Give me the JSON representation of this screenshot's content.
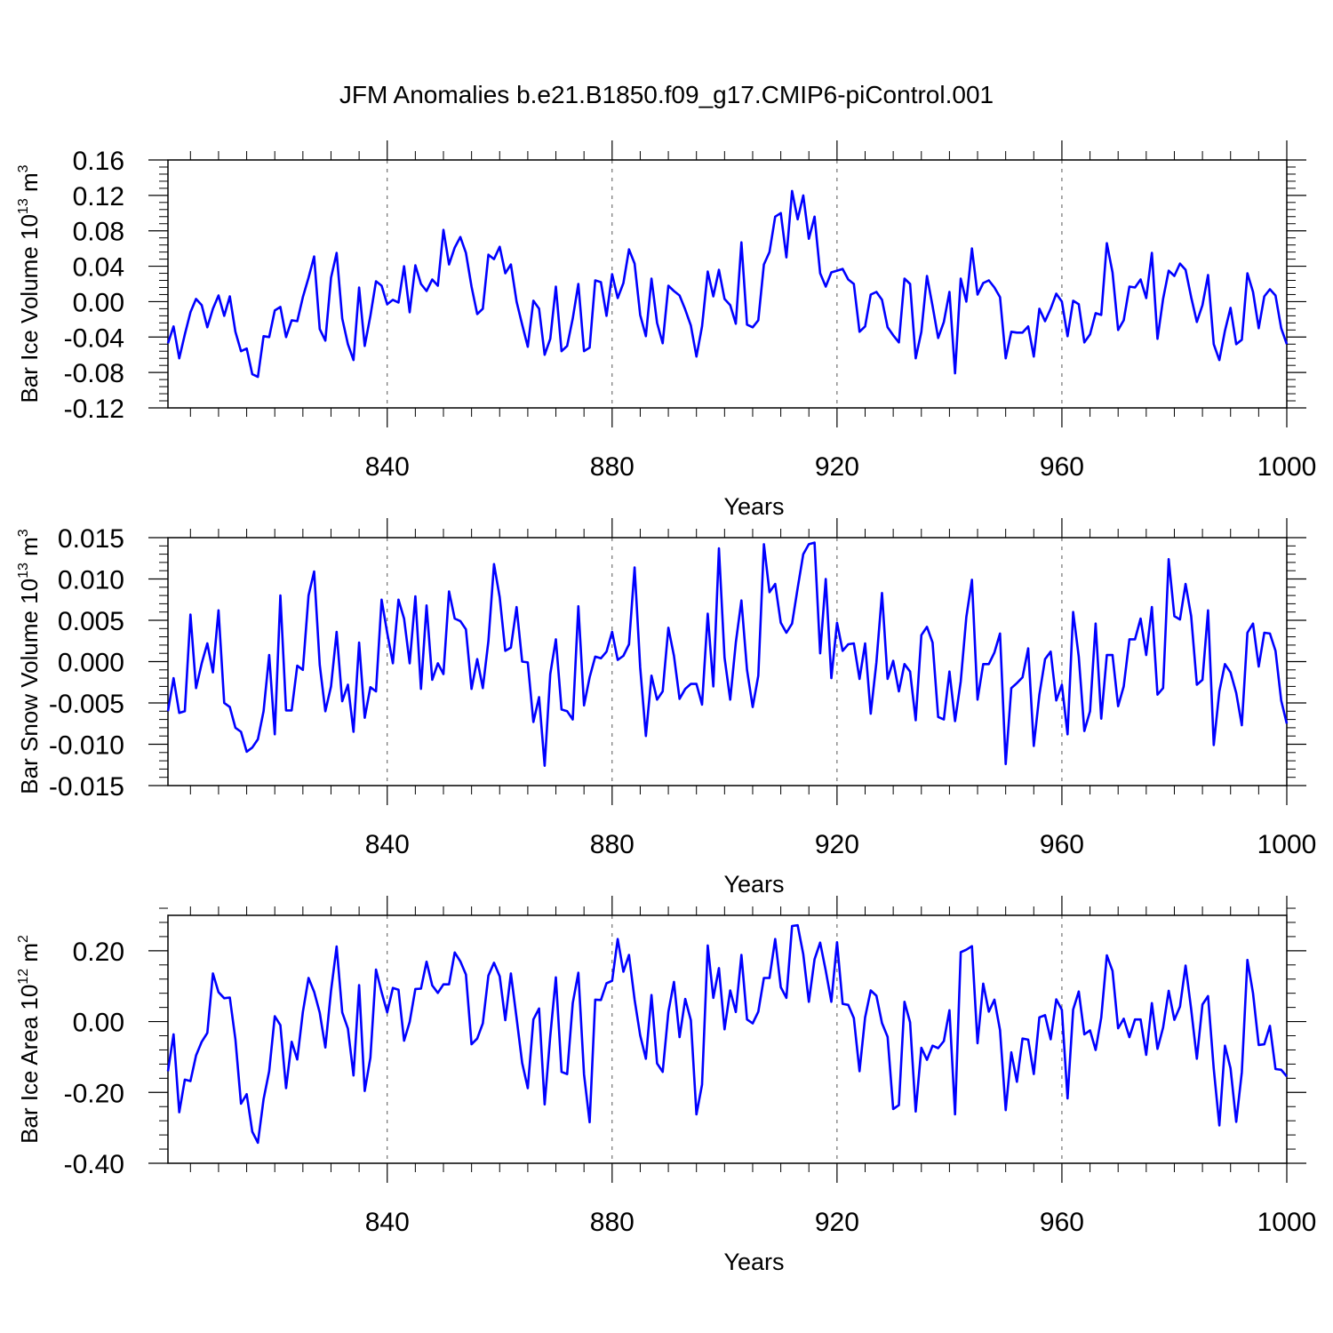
{
  "chart_data": {
    "title": "JFM Anomalies b.e21.B1850.f09_g17.CMIP6-piControl.001",
    "panels": [
      {
        "type": "line",
        "ylabel_prefix": "Bar Ice Volume 10",
        "ylabel_exp": "13",
        "ylabel_unit": " m",
        "ylabel_unit_exp": "3",
        "xlabel": "Years",
        "xlim": [
          801,
          1000
        ],
        "ylim": [
          -0.12,
          0.16
        ],
        "xticks": [
          840,
          880,
          920,
          960,
          1000
        ],
        "xtick_labels": [
          "840",
          "880",
          "920",
          "960",
          "1000"
        ],
        "yticks": [
          -0.12,
          -0.08,
          -0.04,
          0.0,
          0.04,
          0.08,
          0.12,
          0.16
        ],
        "ytick_labels": [
          "-0.12",
          "-0.08",
          "-0.04",
          "0.00",
          "0.04",
          "0.08",
          "0.12",
          "0.16"
        ],
        "color": "#0000ff",
        "series": [
          {
            "name": "Bar Ice Volume",
            "x_start": 801,
            "x_step": 1,
            "values": [
              -0.047,
              -0.028,
              -0.064,
              -0.037,
              -0.012,
              0.003,
              -0.004,
              -0.029,
              -0.008,
              0.007,
              -0.016,
              0.006,
              -0.034,
              -0.056,
              -0.053,
              -0.082,
              -0.085,
              -0.039,
              -0.04,
              -0.01,
              -0.006,
              -0.04,
              -0.021,
              -0.022,
              0.005,
              0.027,
              0.051,
              -0.031,
              -0.044,
              0.027,
              0.055,
              -0.019,
              -0.048,
              -0.066,
              0.016,
              -0.05,
              -0.016,
              0.023,
              0.018,
              -0.003,
              0.002,
              -0.001,
              0.04,
              -0.012,
              0.041,
              0.02,
              0.012,
              0.025,
              0.018,
              0.081,
              0.042,
              0.061,
              0.073,
              0.055,
              0.017,
              -0.014,
              -0.008,
              0.053,
              0.048,
              0.062,
              0.032,
              0.042,
              0.0,
              -0.026,
              -0.051,
              0.001,
              -0.008,
              -0.06,
              -0.042,
              0.017,
              -0.056,
              -0.05,
              -0.019,
              0.02,
              -0.056,
              -0.052,
              0.024,
              0.022,
              -0.016,
              0.031,
              0.004,
              0.021,
              0.059,
              0.043,
              -0.015,
              -0.039,
              0.026,
              -0.024,
              -0.047,
              0.018,
              0.012,
              0.007,
              -0.009,
              -0.027,
              -0.062,
              -0.028,
              0.034,
              0.006,
              0.036,
              0.003,
              -0.004,
              -0.025,
              0.067,
              -0.026,
              -0.029,
              -0.021,
              0.042,
              0.056,
              0.096,
              0.1,
              0.05,
              0.125,
              0.093,
              0.12,
              0.071,
              0.096,
              0.032,
              0.017,
              0.033,
              0.035,
              0.037,
              0.025,
              0.02,
              -0.034,
              -0.028,
              0.008,
              0.011,
              0.002,
              -0.029,
              -0.038,
              -0.046,
              0.026,
              0.02,
              -0.064,
              -0.034,
              0.029,
              -0.005,
              -0.041,
              -0.023,
              0.011,
              -0.081,
              0.026,
              0.0,
              0.06,
              0.008,
              0.021,
              0.024,
              0.016,
              0.005,
              -0.064,
              -0.034,
              -0.035,
              -0.035,
              -0.028,
              -0.062,
              -0.008,
              -0.022,
              -0.008,
              0.009,
              0.0,
              -0.039,
              0.001,
              -0.003,
              -0.046,
              -0.037,
              -0.013,
              -0.015,
              0.066,
              0.033,
              -0.032,
              -0.021,
              0.017,
              0.016,
              0.025,
              0.004,
              0.055,
              -0.042,
              0.003,
              0.035,
              0.029,
              0.043,
              0.036,
              0.005,
              -0.023,
              -0.004,
              0.03,
              -0.048,
              -0.066,
              -0.033,
              -0.007,
              -0.048,
              -0.043,
              0.032,
              0.011,
              -0.03,
              0.006,
              0.014,
              0.007,
              -0.03,
              -0.048
            ]
          }
        ]
      },
      {
        "type": "line",
        "ylabel_prefix": "Bar Snow Volume 10",
        "ylabel_exp": "13",
        "ylabel_unit": " m",
        "ylabel_unit_exp": "3",
        "xlabel": "Years",
        "xlim": [
          801,
          1000
        ],
        "ylim": [
          -0.015,
          0.015
        ],
        "xticks": [
          840,
          880,
          920,
          960,
          1000
        ],
        "xtick_labels": [
          "840",
          "880",
          "920",
          "960",
          "1000"
        ],
        "yticks": [
          -0.015,
          -0.01,
          -0.005,
          0.0,
          0.005,
          0.01,
          0.015
        ],
        "ytick_labels": [
          "-0.015",
          "-0.010",
          "-0.005",
          "0.000",
          "0.005",
          "0.010",
          "0.015"
        ],
        "color": "#0000ff",
        "series": [
          {
            "name": "Bar Snow Volume",
            "x_start": 801,
            "x_step": 1,
            "values": [
              -0.006,
              -0.002,
              -0.0062,
              -0.006,
              0.0057,
              -0.0032,
              -0.0002,
              0.0022,
              -0.0013,
              0.0062,
              -0.005,
              -0.0055,
              -0.008,
              -0.0085,
              -0.0109,
              -0.0104,
              -0.0094,
              -0.006,
              0.0008,
              -0.0088,
              0.008,
              -0.0059,
              -0.0059,
              -0.0005,
              -0.001,
              0.008,
              0.0109,
              -0.0004,
              -0.006,
              -0.003,
              0.0036,
              -0.0048,
              -0.0028,
              -0.0085,
              0.0023,
              -0.0068,
              -0.0031,
              -0.0036,
              0.0075,
              0.0035,
              -0.0002,
              0.0075,
              0.0052,
              -0.0002,
              0.0079,
              -0.0033,
              0.0068,
              -0.0022,
              -0.0002,
              -0.0015,
              0.0085,
              0.0052,
              0.0049,
              0.0039,
              -0.0033,
              0.0003,
              -0.0032,
              0.0025,
              0.0118,
              0.0078,
              0.0013,
              0.0017,
              0.0066,
              0.0,
              -0.0001,
              -0.0073,
              -0.0043,
              -0.0126,
              -0.0015,
              0.0027,
              -0.0058,
              -0.006,
              -0.007,
              0.0067,
              -0.0053,
              -0.0019,
              0.0006,
              0.0004,
              0.0012,
              0.0036,
              0.0002,
              0.0007,
              0.0021,
              0.0114,
              -0.0007,
              -0.009,
              -0.0017,
              -0.0046,
              -0.0036,
              0.0041,
              0.0007,
              -0.0045,
              -0.0033,
              -0.0027,
              -0.0027,
              -0.0052,
              0.0058,
              -0.003,
              0.0137,
              0.0005,
              -0.0046,
              0.0023,
              0.0074,
              -0.001,
              -0.0055,
              -0.0017,
              0.0142,
              0.0084,
              0.0094,
              0.0047,
              0.0035,
              0.0046,
              0.0089,
              0.013,
              0.0142,
              0.0144,
              0.001,
              0.01,
              -0.002,
              0.0047,
              0.0013,
              0.0021,
              0.0022,
              -0.0021,
              0.0022,
              -0.0063,
              -0.0001,
              0.0083,
              -0.0021,
              0.0001,
              -0.0036,
              -0.0003,
              -0.0012,
              -0.0071,
              0.0032,
              0.0042,
              0.0023,
              -0.0067,
              -0.007,
              -0.0012,
              -0.0072,
              -0.0024,
              0.0054,
              0.0099,
              -0.0046,
              -0.0003,
              -0.0003,
              0.0011,
              0.0034,
              -0.0124,
              -0.0032,
              -0.0026,
              -0.0019,
              0.0016,
              -0.0102,
              -0.004,
              0.0003,
              0.0012,
              -0.0047,
              -0.0028,
              -0.0088,
              0.006,
              0.0006,
              -0.0084,
              -0.006,
              0.0046,
              -0.0069,
              0.0008,
              0.0008,
              -0.0054,
              -0.003,
              0.0027,
              0.0027,
              0.0052,
              0.0008,
              0.0066,
              -0.004,
              -0.0032,
              0.0124,
              0.0055,
              0.0051,
              0.0094,
              0.0055,
              -0.0028,
              -0.0022,
              0.0062,
              -0.0101,
              -0.0036,
              -0.0003,
              -0.0013,
              -0.0038,
              -0.0077,
              0.0035,
              0.0046,
              -0.0006,
              0.0035,
              0.0034,
              0.0013,
              -0.0047,
              -0.0075
            ]
          }
        ]
      },
      {
        "type": "line",
        "ylabel_prefix": "Bar Ice Area 10",
        "ylabel_exp": "12",
        "ylabel_unit": " m",
        "ylabel_unit_exp": "2",
        "xlabel": "Years",
        "xlim": [
          801,
          1000
        ],
        "ylim": [
          -0.4,
          0.3
        ],
        "xticks": [
          840,
          880,
          920,
          960,
          1000
        ],
        "xtick_labels": [
          "840",
          "880",
          "920",
          "960",
          "1000"
        ],
        "yticks": [
          -0.4,
          -0.2,
          0.0,
          0.2
        ],
        "ytick_labels": [
          "-0.40",
          "-0.20",
          "0.00",
          "0.20"
        ],
        "color": "#0000ff",
        "series": [
          {
            "name": "Bar Ice Area",
            "x_start": 801,
            "x_step": 1,
            "values": [
              -0.14,
              -0.036,
              -0.256,
              -0.164,
              -0.168,
              -0.096,
              -0.057,
              -0.032,
              0.136,
              0.083,
              0.066,
              0.068,
              -0.05,
              -0.232,
              -0.205,
              -0.311,
              -0.342,
              -0.219,
              -0.14,
              0.015,
              -0.01,
              -0.188,
              -0.057,
              -0.107,
              0.027,
              0.123,
              0.084,
              0.025,
              -0.073,
              0.087,
              0.212,
              0.026,
              -0.02,
              -0.152,
              0.103,
              -0.196,
              -0.102,
              0.147,
              0.083,
              0.026,
              0.095,
              0.09,
              -0.054,
              -0.001,
              0.092,
              0.093,
              0.169,
              0.102,
              0.081,
              0.105,
              0.105,
              0.195,
              0.17,
              0.133,
              -0.064,
              -0.048,
              -0.005,
              0.13,
              0.166,
              0.128,
              0.004,
              0.136,
              0.01,
              -0.117,
              -0.188,
              0.006,
              0.037,
              -0.234,
              -0.041,
              0.125,
              -0.142,
              -0.148,
              0.052,
              0.138,
              -0.149,
              -0.284,
              0.062,
              0.061,
              0.108,
              0.115,
              0.233,
              0.141,
              0.188,
              0.062,
              -0.039,
              -0.105,
              0.075,
              -0.118,
              -0.142,
              0.027,
              0.112,
              -0.044,
              0.064,
              0.004,
              -0.262,
              -0.178,
              0.215,
              0.067,
              0.151,
              -0.022,
              0.088,
              0.027,
              0.188,
              0.006,
              -0.005,
              0.028,
              0.123,
              0.123,
              0.233,
              0.097,
              0.067,
              0.27,
              0.272,
              0.19,
              0.056,
              0.176,
              0.223,
              0.144,
              0.056,
              0.224,
              0.05,
              0.047,
              0.01,
              -0.14,
              0.012,
              0.088,
              0.073,
              -0.004,
              -0.043,
              -0.247,
              -0.236,
              0.056,
              -0.002,
              -0.254,
              -0.074,
              -0.108,
              -0.068,
              -0.075,
              -0.055,
              0.032,
              -0.262,
              0.196,
              0.203,
              0.213,
              -0.061,
              0.107,
              0.028,
              0.062,
              -0.024,
              -0.25,
              -0.087,
              -0.17,
              -0.048,
              -0.051,
              -0.148,
              0.012,
              0.018,
              -0.05,
              0.063,
              0.033,
              -0.217,
              0.034,
              0.085,
              -0.036,
              -0.025,
              -0.08,
              0.011,
              0.187,
              0.143,
              -0.019,
              0.008,
              -0.044,
              0.006,
              0.006,
              -0.094,
              0.052,
              -0.077,
              -0.017,
              0.087,
              0.005,
              0.042,
              0.158,
              0.035,
              -0.105,
              0.048,
              0.072,
              -0.133,
              -0.293,
              -0.068,
              -0.132,
              -0.283,
              -0.143,
              0.174,
              0.08,
              -0.066,
              -0.064,
              -0.012,
              -0.134,
              -0.136,
              -0.155
            ]
          }
        ]
      }
    ]
  }
}
